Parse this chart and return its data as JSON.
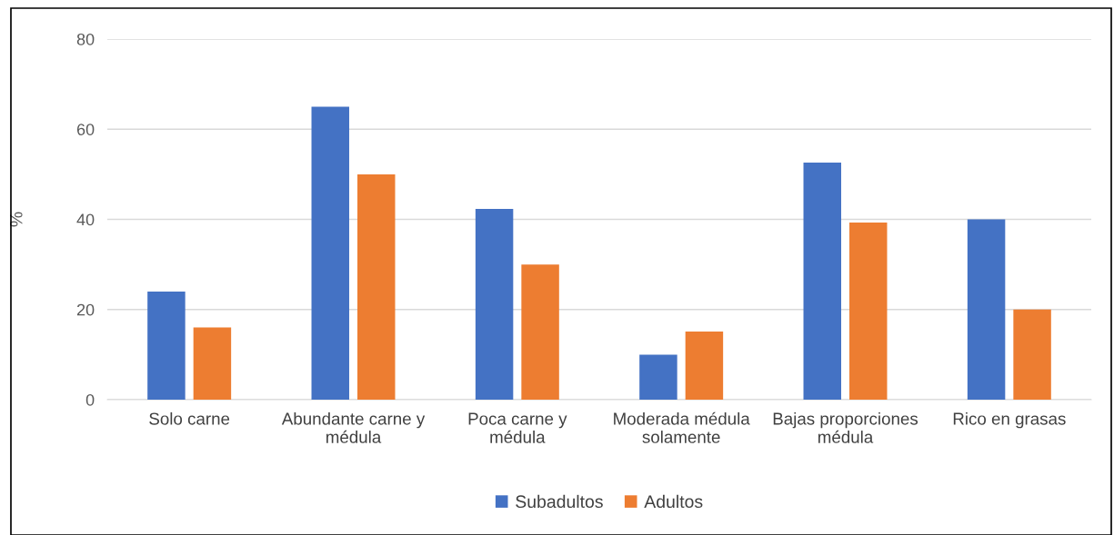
{
  "chart_data": {
    "type": "bar",
    "ylabel": "%",
    "categories": [
      "Solo carne",
      "Abundante carne y\nmédula",
      "Poca carne y\nmédula",
      "Moderada médula\nsolamente",
      "Bajas proporciones\nmédula",
      "Rico en grasas"
    ],
    "series": [
      {
        "name": "Subadultos",
        "color": "#4472c4",
        "values": [
          24,
          65,
          42.3,
          10,
          52.6,
          40
        ]
      },
      {
        "name": "Adultos",
        "color": "#ed7d31",
        "values": [
          16,
          50,
          30,
          15.1,
          39.3,
          20
        ]
      }
    ],
    "ylim": [
      0,
      80
    ],
    "yticks": [
      0,
      20,
      40,
      60,
      80
    ],
    "grid": "y",
    "legend": "bottom"
  }
}
